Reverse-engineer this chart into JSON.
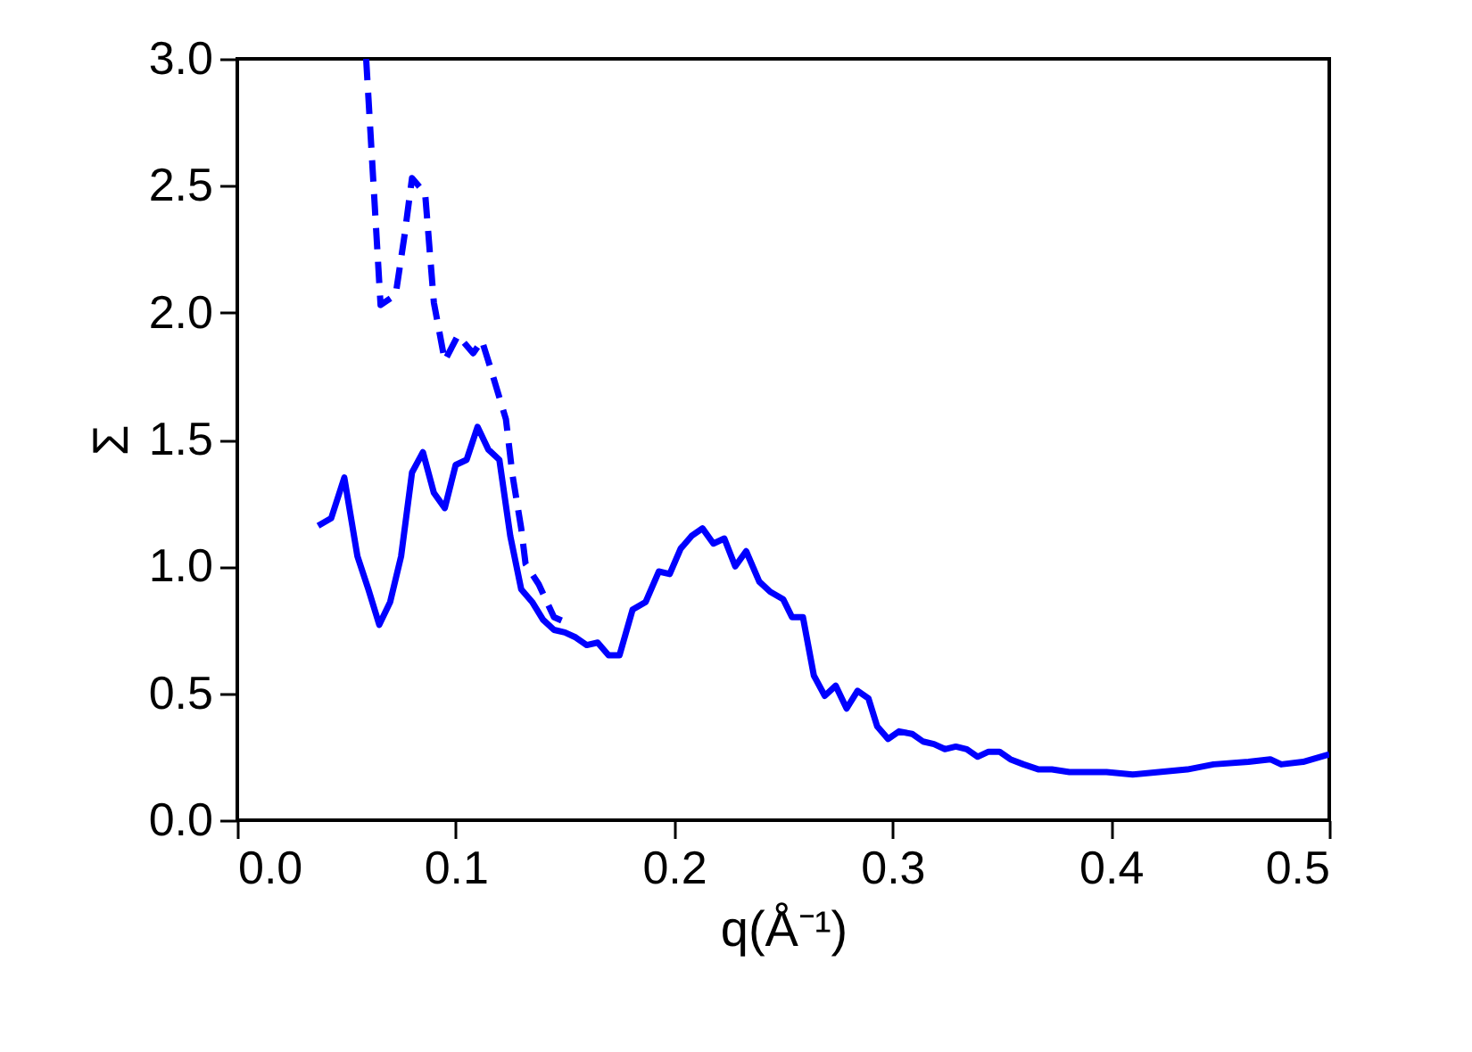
{
  "chart_data": {
    "type": "line",
    "xlabel": "q(Å⁻¹)",
    "ylabel": "Σ",
    "xlim": [
      0.0,
      0.5
    ],
    "xticks": [
      {
        "value": 0.0,
        "label": "0.0"
      },
      0.1,
      0.2,
      0.3,
      0.4,
      0.5
    ],
    "ylim": [
      0.0,
      3.0
    ],
    "yticks": [
      {
        "value": 0.0,
        "label": "0.0"
      },
      0.5,
      {
        "value": 1.0,
        "label": "1.0"
      },
      1.5,
      {
        "value": 2.0,
        "label": "2.0"
      },
      2.5,
      {
        "value": 3.0,
        "label": "3.0"
      }
    ],
    "grid": false,
    "marker": "none",
    "series": [
      {
        "color": "#0000ff",
        "line_style": "solid",
        "x": [
          0.037,
          0.043,
          0.049,
          0.055,
          0.06,
          0.065,
          0.07,
          0.075,
          0.08,
          0.085,
          0.09,
          0.095,
          0.1,
          0.105,
          0.11,
          0.115,
          0.12,
          0.125,
          0.13,
          0.135,
          0.14,
          0.145,
          0.15,
          0.155,
          0.16,
          0.165,
          0.17,
          0.175,
          0.181,
          0.187,
          0.193,
          0.198,
          0.203,
          0.208,
          0.213,
          0.218,
          0.223,
          0.228,
          0.233,
          0.239,
          0.244,
          0.25,
          0.254,
          0.259,
          0.264,
          0.269,
          0.274,
          0.279,
          0.284,
          0.289,
          0.293,
          0.298,
          0.303,
          0.309,
          0.314,
          0.319,
          0.324,
          0.329,
          0.334,
          0.339,
          0.344,
          0.349,
          0.354,
          0.36,
          0.367,
          0.373,
          0.381,
          0.398,
          0.41,
          0.422,
          0.435,
          0.447,
          0.463,
          0.473,
          0.478,
          0.488,
          0.5
        ],
        "values": [
          1.16,
          1.19,
          1.35,
          1.04,
          0.91,
          0.77,
          0.86,
          1.04,
          1.37,
          1.45,
          1.29,
          1.23,
          1.4,
          1.42,
          1.55,
          1.46,
          1.42,
          1.12,
          0.91,
          0.86,
          0.79,
          0.75,
          0.74,
          0.72,
          0.69,
          0.7,
          0.65,
          0.65,
          0.83,
          0.86,
          0.98,
          0.97,
          1.07,
          1.12,
          1.15,
          1.09,
          1.11,
          1.0,
          1.06,
          0.94,
          0.9,
          0.87,
          0.8,
          0.8,
          0.57,
          0.49,
          0.53,
          0.44,
          0.51,
          0.48,
          0.37,
          0.32,
          0.35,
          0.34,
          0.31,
          0.3,
          0.28,
          0.29,
          0.28,
          0.25,
          0.27,
          0.27,
          0.24,
          0.22,
          0.2,
          0.2,
          0.19,
          0.19,
          0.18,
          0.19,
          0.2,
          0.22,
          0.23,
          0.24,
          0.22,
          0.23,
          0.26
        ]
      },
      {
        "color": "#0000ff",
        "line_style": "dashed",
        "x": [
          0.059,
          0.0656,
          0.0725,
          0.0765,
          0.08,
          0.086,
          0.09,
          0.095,
          0.101,
          0.108,
          0.112,
          0.116,
          0.123,
          0.126,
          0.13,
          0.132,
          0.138,
          0.145,
          0.153
        ],
        "values": [
          3.0,
          2.03,
          2.07,
          2.3,
          2.53,
          2.47,
          2.04,
          1.81,
          1.91,
          1.84,
          1.89,
          1.78,
          1.58,
          1.36,
          1.15,
          1.01,
          0.93,
          0.8,
          0.77
        ]
      }
    ]
  }
}
